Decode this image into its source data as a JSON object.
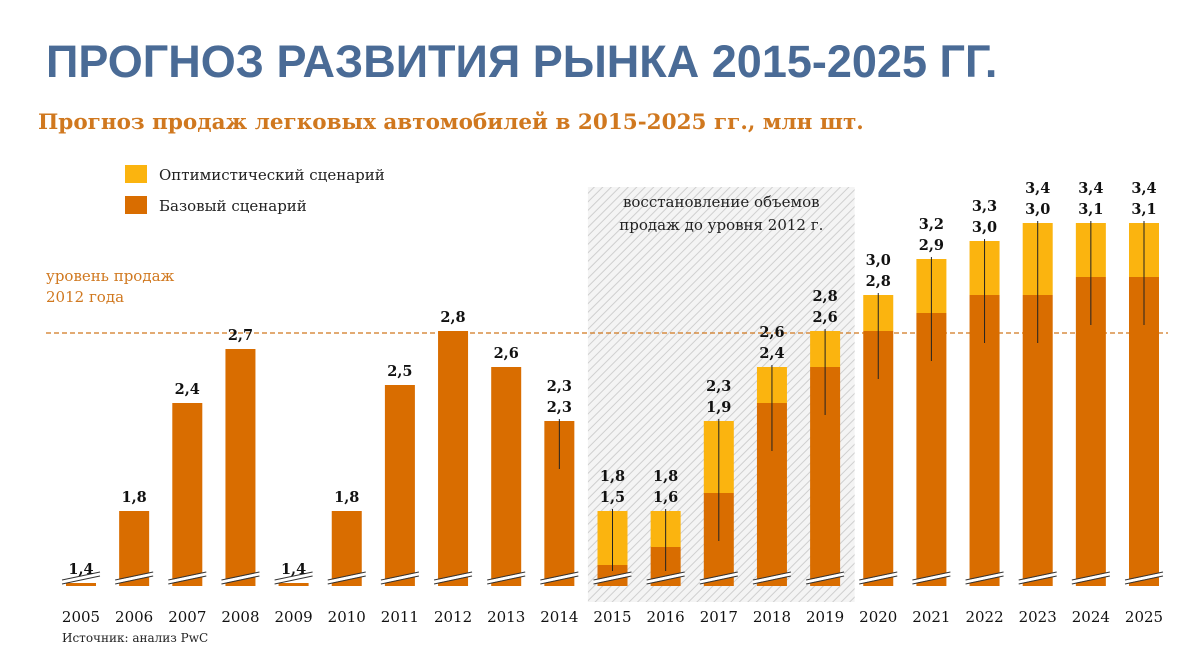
{
  "title": "ПРОГНОЗ РАЗВИТИЯ РЫНКА 2015-2025 ГГ.",
  "subtitle": "Прогноз продаж легковых автомобилей в 2015-2025 гг., млн шт.",
  "source": "Источник: анализ PwC",
  "colors": {
    "base": "#d96d00",
    "optimistic": "#fbb40f",
    "title": "#4a6b96",
    "subtitle": "#d0781f",
    "refline": "#d0781f"
  },
  "chart_data": {
    "type": "bar",
    "stacked": true,
    "categories": [
      "2005",
      "2006",
      "2007",
      "2008",
      "2009",
      "2010",
      "2011",
      "2012",
      "2013",
      "2014",
      "2015",
      "2016",
      "2017",
      "2018",
      "2019",
      "2020",
      "2021",
      "2022",
      "2023",
      "2024",
      "2025"
    ],
    "series": [
      {
        "name": "Базовый сценарий",
        "values": [
          1.4,
          1.8,
          2.4,
          2.7,
          1.4,
          1.8,
          2.5,
          2.8,
          2.6,
          2.3,
          1.5,
          1.6,
          1.9,
          2.4,
          2.6,
          2.8,
          2.9,
          3.0,
          3.0,
          3.1,
          3.1
        ]
      },
      {
        "name": "Оптимистический сценарий",
        "values": [
          null,
          null,
          null,
          null,
          null,
          null,
          null,
          null,
          null,
          2.3,
          1.8,
          1.8,
          2.3,
          2.6,
          2.8,
          3.0,
          3.2,
          3.3,
          3.4,
          3.4,
          3.4
        ]
      }
    ],
    "base_labels": [
      "1,4",
      "1,8",
      "2,4",
      "2,7",
      "1,4",
      "1,8",
      "2,5",
      "2,8",
      "2,6",
      "2,3",
      "1,5",
      "1,6",
      "1,9",
      "2,4",
      "2,6",
      "2,8",
      "2,9",
      "3,0",
      "3,0",
      "3,1",
      "3,1"
    ],
    "optimistic_labels": [
      "",
      "",
      "",
      "",
      "",
      "",
      "",
      "",
      "",
      "2,3",
      "1,8",
      "1,8",
      "2,3",
      "2,6",
      "2,8",
      "3,0",
      "3,2",
      "3,3",
      "3,4",
      "3,4",
      "3,4"
    ],
    "reference_line": {
      "label_line1": "уровень продаж",
      "label_line2": "2012 года",
      "value": 2.8
    },
    "shaded_region": {
      "from": "2015",
      "to": "2019",
      "label_line1": "восстановление объемов",
      "label_line2": "продаж до уровня 2012 г."
    },
    "legend_position": "top-left",
    "axis_break": true,
    "ylim": [
      1.2,
      3.5
    ]
  }
}
